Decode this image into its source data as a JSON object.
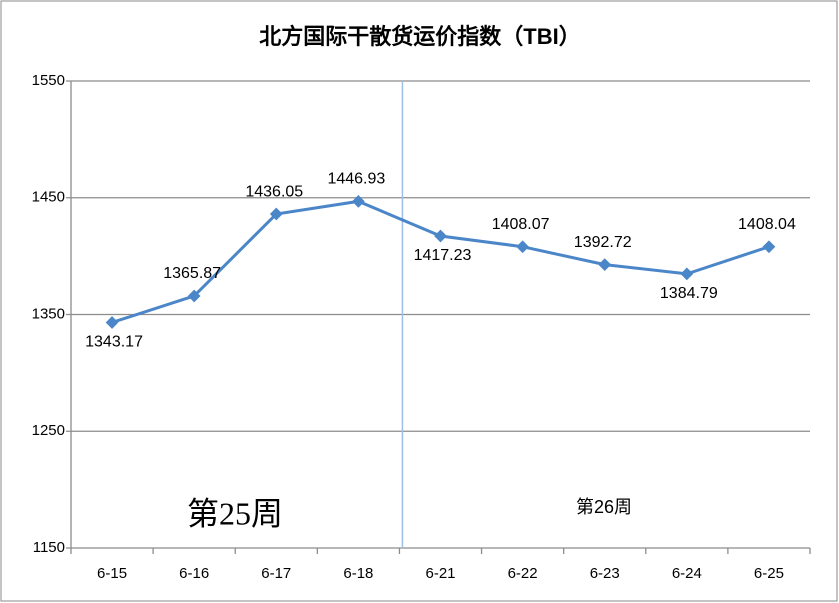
{
  "chart_data": {
    "type": "line",
    "title": "北方国际干散货运价指数（TBI）",
    "categories": [
      "6-15",
      "6-16",
      "6-17",
      "6-18",
      "6-21",
      "6-22",
      "6-23",
      "6-24",
      "6-25"
    ],
    "values": [
      1343.17,
      1365.87,
      1436.05,
      1446.93,
      1417.23,
      1408.07,
      1392.72,
      1384.79,
      1408.04
    ],
    "color": "#4a86c8",
    "ylim": [
      1150,
      1550
    ],
    "yticks": [
      1150,
      1250,
      1350,
      1450,
      1550
    ],
    "grid": true,
    "annotations": [
      "第25周",
      "第26周"
    ]
  }
}
